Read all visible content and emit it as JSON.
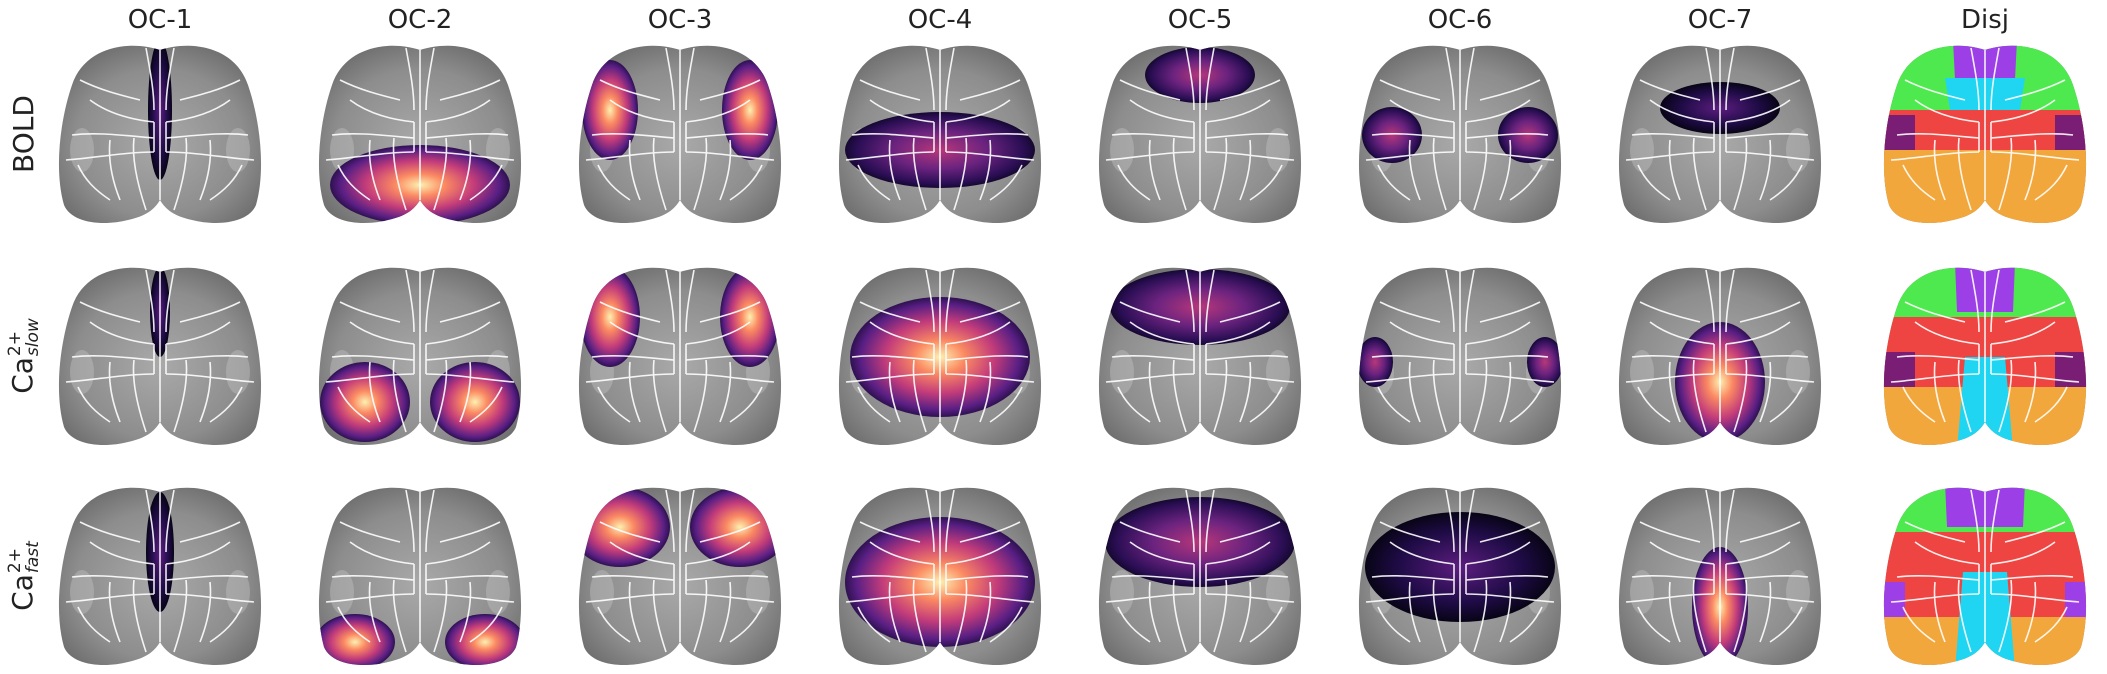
{
  "columns": [
    "OC-1",
    "OC-2",
    "OC-3",
    "OC-4",
    "OC-5",
    "OC-6",
    "OC-7",
    "Disj"
  ],
  "rows": [
    {
      "id": "bold",
      "label": "BOLD",
      "sup": "",
      "sub": ""
    },
    {
      "id": "ca-slow",
      "label": "Ca",
      "sup": "2+",
      "sub": "slow"
    },
    {
      "id": "ca-fast",
      "label": "Ca",
      "sup": "2+",
      "sub": "fast"
    }
  ],
  "colors": {
    "brain_base": "#8c8c8c",
    "boundary": "#ffffff",
    "disj_green": "#4ee94e",
    "disj_purple": "#9d3fe6",
    "disj_cyan": "#1fd5f2",
    "disj_red": "#ee4542",
    "disj_orange": "#f2a73c",
    "disj_darkpurple": "#7a1d74",
    "map_low": "#000004",
    "map_mid": "#8c2981",
    "map_high": "#fcfdbf"
  },
  "panel_icons": [
    "cortex-map-icon"
  ]
}
